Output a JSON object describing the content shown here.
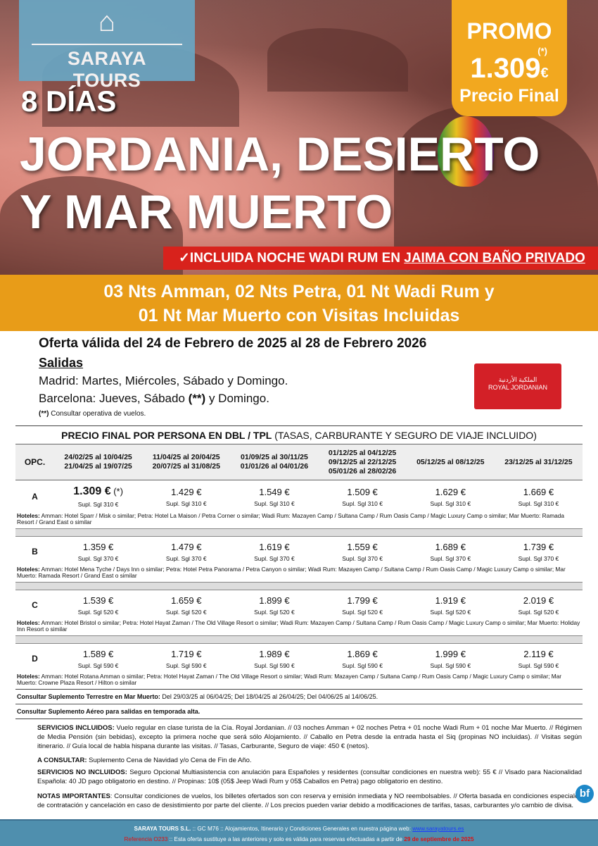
{
  "brand": {
    "name": "SARAYA TOURS"
  },
  "promo": {
    "label": "PROMO",
    "price": "1.309",
    "asterisk": "(*)",
    "currency": "€",
    "final": "Precio Final"
  },
  "hero": {
    "days": "8 DÍAS",
    "title_line1": "JORDANIA, DESIERTO",
    "title_line2": "Y MAR MUERTO"
  },
  "banner": {
    "check": "✓",
    "text": "INCLUIDA NOCHE WADI RUM EN ",
    "underlined": "JAIMA CON BAÑO PRIVADO"
  },
  "itinerary": {
    "line1": "03 Nts Amman,  02 Nts Petra, 01 Nt Wadi Rum y",
    "line2": "01 Nt Mar Muerto con Visitas Incluidas"
  },
  "offer": "Oferta válida del 24 de Febrero de 2025 al 28 de Febrero 2026",
  "salidas": {
    "title": "Salidas",
    "madrid": "Madrid: Martes, Miércoles, Sábado y Domingo.",
    "barcelona_a": "Barcelona: Jueves, Sábado ",
    "barcelona_b": "(**)",
    "barcelona_c": " y Domingo.",
    "note_a": "(**)",
    "note_b": " Consultar operativa de vuelos."
  },
  "airline": {
    "arabic": "الملكية الأردنية",
    "name": "ROYAL JORDANIAN"
  },
  "table": {
    "title_bold": "PRECIO FINAL POR PERSONA EN DBL / TPL",
    "title_rest": " (TASAS, CARBURANTE Y SEGURO DE VIAJE INCLUIDO)",
    "opc": "OPC.",
    "columns": [
      "24/02/25 al 10/04/25\n21/04/25 al 19/07/25",
      "11/04/25 al 20/04/25\n20/07/25 al 31/08/25",
      "01/09/25 al 30/11/25\n01/01/26 al 04/01/26",
      "01/12/25 al 04/12/25\n09/12/25 al 22/12/25\n05/01/26 al 28/02/26",
      "05/12/25 al 08/12/25",
      "23/12/25 al 31/12/25"
    ],
    "hotels_label": "Hoteles:",
    "rows": [
      {
        "opt": "A",
        "prices": [
          "1.309 €",
          "1.429 €",
          "1.549 €",
          "1.509 €",
          "1.629 €",
          "1.669 €"
        ],
        "first_suffix": " (*)",
        "supl": "Supl. Sgl 310 €",
        "hotels": " Amman: Hotel Sparr / Misk o similar; Petra: Hotel La Maison / Petra Corner o similar;  Wadi Rum: Mazayen Camp / Sultana Camp / Rum Oasis Camp / Magic Luxury Camp o similar; Mar Muerto: Ramada Resort / Grand East o similar"
      },
      {
        "opt": "B",
        "prices": [
          "1.359 €",
          "1.479 €",
          "1.619 €",
          "1.559 €",
          "1.689 €",
          "1.739 €"
        ],
        "supl": "Supl. Sgl 370 €",
        "hotels": " Amman: Hotel Mena Tyche / Days Inn o similar; Petra: Hotel Petra Panorama / Petra Canyon o similar; Wadi Rum: Mazayen Camp / Sultana Camp / Rum Oasis Camp / Magic Luxury Camp o similar; Mar Muerto: Ramada Resort / Grand East o similar"
      },
      {
        "opt": "C",
        "prices": [
          "1.539 €",
          "1.659 €",
          "1.899 €",
          "1.799 €",
          "1.919 €",
          "2.019 €"
        ],
        "supl": "Supl. Sgl 520 €",
        "hotels": "  Amman: Hotel Bristol o similar; Petra: Hotel Hayat Zaman / The Old Village Resort o similar; Wadi Rum: Mazayen Camp / Sultana Camp / Rum Oasis Camp / Magic Luxury Camp o similar; Mar Muerto: Holiday Inn Resort o similar"
      },
      {
        "opt": "D",
        "prices": [
          "1.589 €",
          "1.719 €",
          "1.989 €",
          "1.869 €",
          "1.999 €",
          "2.119 €"
        ],
        "supl": "Supl. Sgl 590 €",
        "hotels": " Amman: Hotel Rotana Amman o similar; Petra: Hotel Hayat Zaman / The Old Village Resort o similar; Wadi Rum: Mazayen Camp / Sultana Camp / Rum Oasis Camp / Magic Luxury Camp o similar; Mar Muerto: Crowne Plaza Resort / Hilton o similar"
      }
    ],
    "terrestre_label": "Consultar Suplemento Terrestre en Mar Muerto:",
    "terrestre": " Del 29/03/25 al 06/04/25; Del 18/04/25 al 26/04/25; Del 04/06/25 al 14/06/25.",
    "aereo": "Consultar Suplemento Aéreo para salidas en temporada alta."
  },
  "sections": [
    {
      "label": "SERVICIOS INCLUIDOS:",
      "text": " Vuelo regular en clase turista de la Cía. Royal Jordanian. // 03 noches Amman + 02 noches Petra + 01 noche Wadi Rum + 01  noche Mar Muerto. // Régimen de Media Pensión (sin bebidas), excepto la primera noche que será sólo Alojamiento. // Caballo en Petra desde la entrada hasta el Siq (propinas NO incluidas). // Visitas según itinerario. // Guía local de habla hispana durante las visitas. // Tasas, Carburante, Seguro de viaje: 450 € (netos)."
    },
    {
      "label": "A CONSULTAR:",
      "text": " Suplemento Cena de Navidad y/o Cena de Fin de Año."
    },
    {
      "label": "SERVICIOS NO INCLUIDOS:",
      "text": " Seguro Opcional Multiasistencia con anulación para Españoles y residentes (consultar condiciones en nuestra web): 55 € // Visado para Nacionalidad Española: 40 JD pago obligatorio en destino. // Propinas: 10$ (05$ Jeep Wadi Rum y 05$ Caballos en Petra) pago obligatorio en destino."
    },
    {
      "label": "NOTAS IMPORTANTES",
      "text": ": Consultar condiciones de vuelos, los billetes ofertados son con reserva y emisión inmediata y NO reembolsables. // Oferta basada en condiciones especiales de contratación y cancelación en caso de desistimiento por parte del cliente. // Los precios pueden variar debido a modificaciones de tarifas, tasas, carburantes y/o cambio de divisa."
    }
  ],
  "footer": {
    "company": "SARAYA TOURS S.L.",
    "line1": " :: GC M76 ::  Alojamientos, Itinerario y Condiciones Generales en nuestra página web:  ",
    "web": "www.sarayatours.es",
    "ref": "Referencia O233",
    "line2": " :: Esta oferta sustituye a las anteriores y solo es válida para reservas efectuadas a partir de ",
    "date": "29 de septiembre de 2025"
  },
  "badge": "bf",
  "colors": {
    "orange": "#e89c18",
    "red": "#d8221c",
    "blue": "#4f8fae",
    "promo": "#f2a81f"
  }
}
